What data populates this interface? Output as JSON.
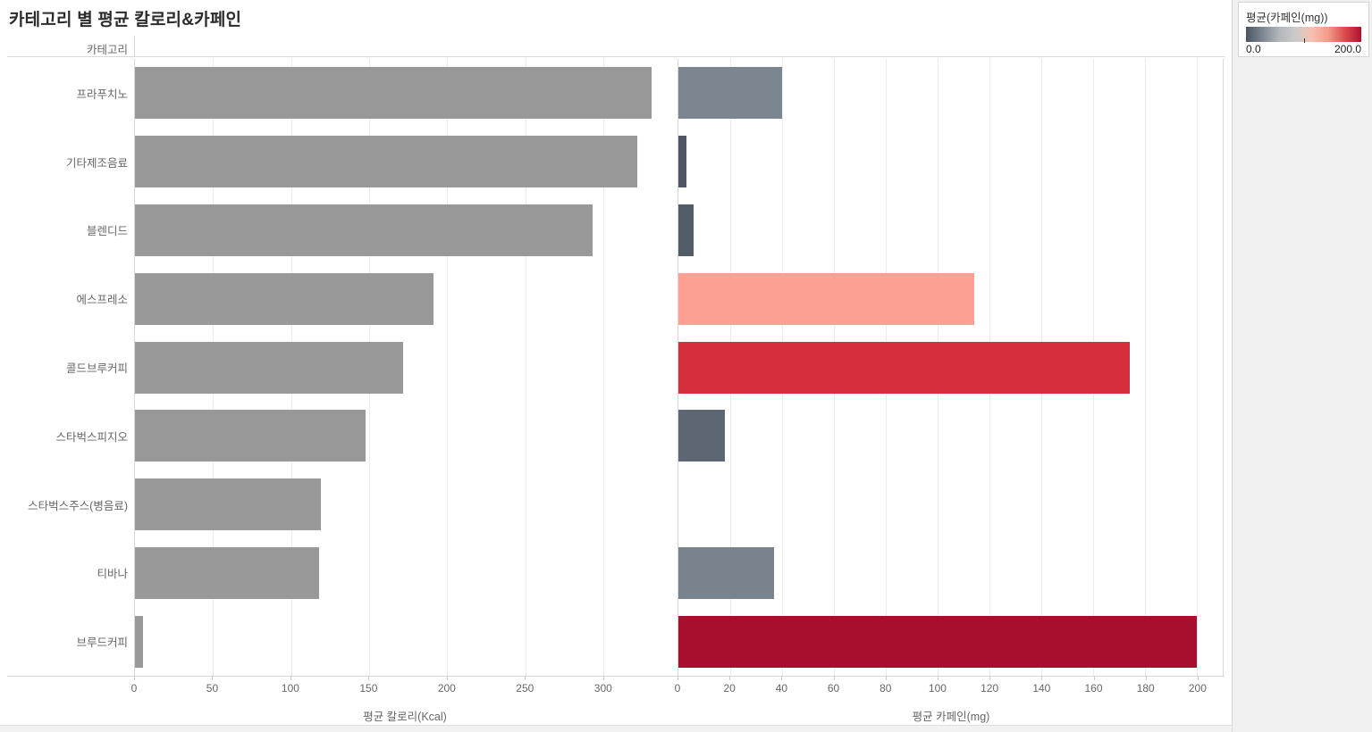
{
  "title": "카테고리 별 평균 칼로리&카페인",
  "row_header": "카테고리",
  "legend": {
    "title": "평균(카페인(mg))",
    "min_label": "0.0",
    "max_label": "200.0",
    "gradient_stops": [
      "#4a5561",
      "#7b8691",
      "#b3b7bb",
      "#cbcbcb",
      "#f6c0b0",
      "#f39c8a",
      "#dc4a4a",
      "#b01030"
    ]
  },
  "colors": {
    "calorie_bar": "#999999",
    "gridline": "#ececec",
    "axis_text": "#666666"
  },
  "chart_data": [
    {
      "type": "bar",
      "orientation": "horizontal",
      "title": "평균 칼로리(Kcal)",
      "xlabel": "평균 칼로리(Kcal)",
      "categories": [
        "프라푸치노",
        "기타제조음료",
        "블렌디드",
        "에스프레소",
        "콜드브루커피",
        "스타벅스피지오",
        "스타벅스주스(병음료)",
        "티바나",
        "브루드커피"
      ],
      "values": [
        331,
        322,
        293,
        191,
        172,
        148,
        119,
        118,
        5
      ],
      "xlim": [
        0,
        347
      ],
      "xticks": [
        0,
        50,
        100,
        150,
        200,
        250,
        300
      ],
      "bar_colors": [
        "#999999",
        "#999999",
        "#999999",
        "#999999",
        "#999999",
        "#999999",
        "#999999",
        "#999999",
        "#999999"
      ],
      "grid": true,
      "legend_position": "none"
    },
    {
      "type": "bar",
      "orientation": "horizontal",
      "title": "평균 카페인(mg)",
      "xlabel": "평균 카페인(mg)",
      "categories": [
        "프라푸치노",
        "기타제조음료",
        "블렌디드",
        "에스프레소",
        "콜드브루커피",
        "스타벅스피지오",
        "스타벅스주스(병음료)",
        "티바나",
        "브루드커피"
      ],
      "values": [
        40,
        3,
        6,
        114,
        174,
        18,
        0,
        37,
        200
      ],
      "xlim": [
        0,
        210
      ],
      "xticks": [
        0,
        20,
        40,
        60,
        80,
        100,
        120,
        140,
        160,
        180,
        200
      ],
      "bar_colors": [
        "#7b8691",
        "#505566",
        "#525c66",
        "#fba092",
        "#d52f3e",
        "#5d6773",
        null,
        "#78838d",
        "#a80e2e"
      ],
      "color_encoding": "평균(카페인(mg)) 0-200 gray-to-red diverging",
      "grid": true,
      "legend_position": "top-right"
    }
  ]
}
